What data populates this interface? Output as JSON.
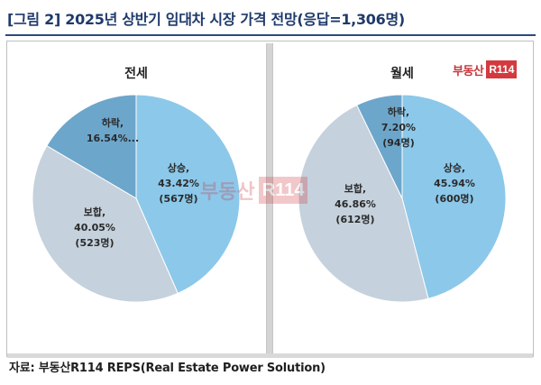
{
  "figure": {
    "title": "[그림 2] 2025년 상반기 임대차 시장 가격 전망(응답=1,306명)",
    "source": "자료: 부동산R114 REPS(Real Estate Power Solution)"
  },
  "brand": {
    "text": "부동산",
    "box": "R114"
  },
  "chart_data": [
    {
      "type": "pie",
      "title": "전세",
      "slices": [
        {
          "name": "상승",
          "percent": 43.42,
          "percent_label": "43.42%",
          "count_label": "(567명)",
          "color": "#8cc8ea"
        },
        {
          "name": "보합",
          "percent": 40.05,
          "percent_label": "40.05%",
          "count_label": "(523명)",
          "color": "#c5d1dc"
        },
        {
          "name": "하락",
          "percent": 16.54,
          "percent_label": "16.54%...",
          "count_label": "",
          "color": "#6da6cb"
        }
      ]
    },
    {
      "type": "pie",
      "title": "월세",
      "slices": [
        {
          "name": "상승",
          "percent": 45.94,
          "percent_label": "45.94%",
          "count_label": "(600명)",
          "color": "#8cc8ea"
        },
        {
          "name": "보합",
          "percent": 46.86,
          "percent_label": "46.86%",
          "count_label": "(612명)",
          "color": "#c5d1dc"
        },
        {
          "name": "하락",
          "percent": 7.2,
          "percent_label": "7.20%",
          "count_label": "(94명)",
          "color": "#6da6cb"
        }
      ]
    }
  ]
}
